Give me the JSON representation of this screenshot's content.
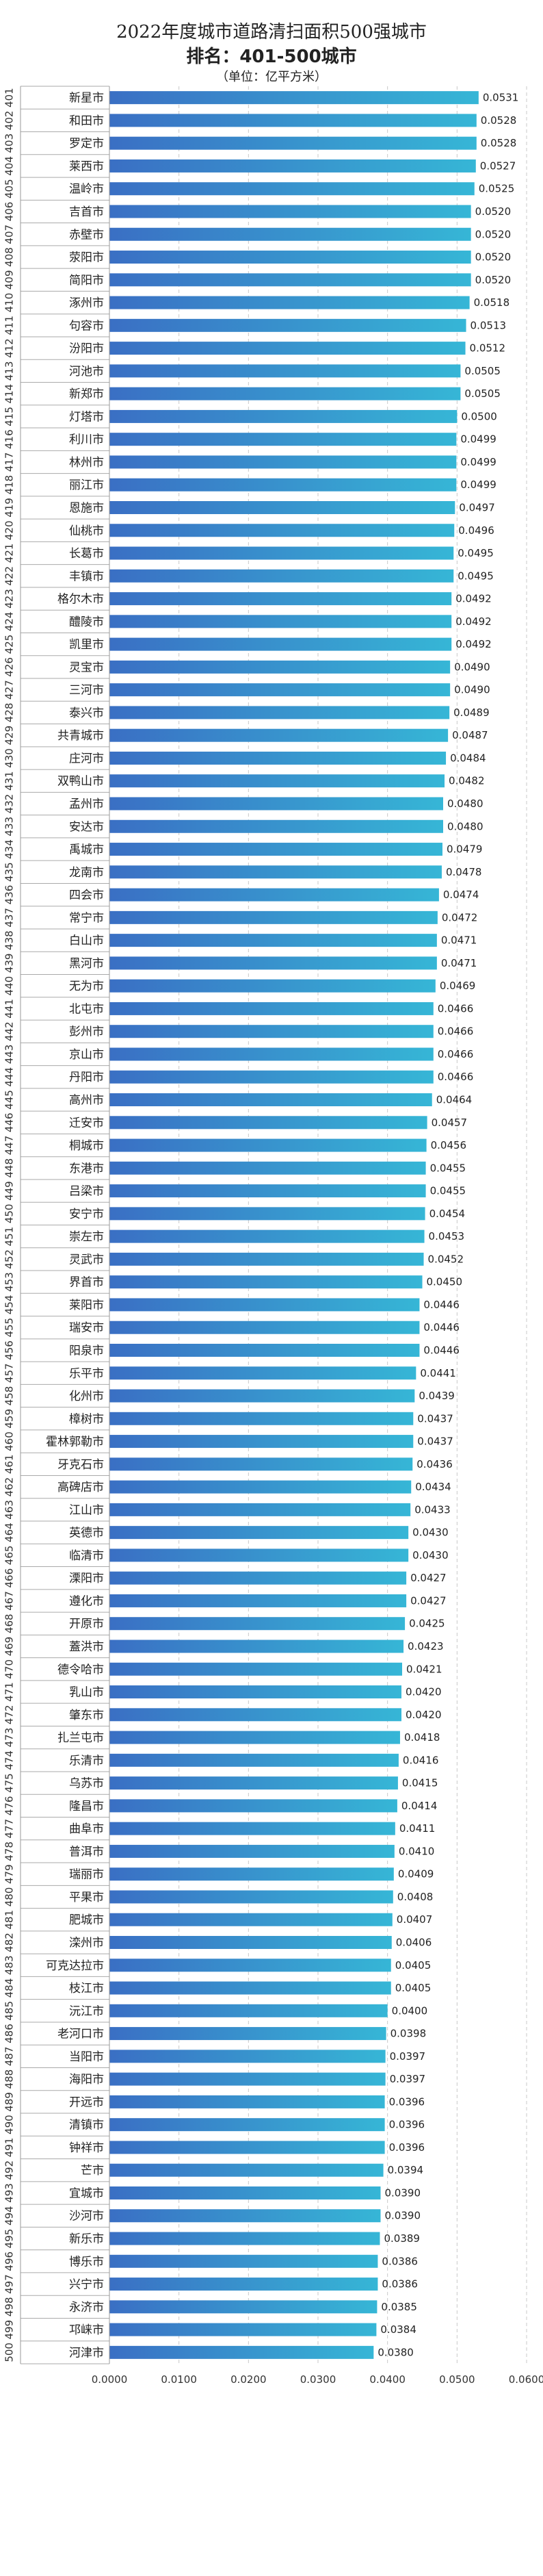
{
  "title": "2022年度城市道路清扫面积500强城市",
  "subtitle": "排名：401-500城市",
  "unit": "（单位：亿平方米）",
  "chart_data": {
    "type": "bar",
    "orientation": "horizontal",
    "title": "2022年度城市道路清扫面积500强城市",
    "subtitle": "排名：401-500城市",
    "unit": "（单位：亿平方米）",
    "xlim": [
      0,
      0.06
    ],
    "x_ticks": [
      "0.0000",
      "0.0100",
      "0.0200",
      "0.0300",
      "0.0400",
      "0.0500",
      "0.0600"
    ],
    "grid": "vertical dashed",
    "bar_color_start": "#3a6fc4",
    "bar_color_end": "#36b6d6",
    "ranks": [
      401,
      402,
      403,
      404,
      405,
      406,
      407,
      408,
      409,
      410,
      411,
      412,
      413,
      414,
      415,
      416,
      417,
      418,
      419,
      420,
      421,
      422,
      423,
      424,
      425,
      426,
      427,
      428,
      429,
      430,
      431,
      432,
      433,
      434,
      435,
      436,
      437,
      438,
      439,
      440,
      441,
      442,
      443,
      444,
      445,
      446,
      447,
      448,
      449,
      450,
      451,
      452,
      453,
      454,
      455,
      456,
      457,
      458,
      459,
      460,
      461,
      462,
      463,
      464,
      465,
      466,
      467,
      468,
      469,
      470,
      471,
      472,
      473,
      474,
      475,
      476,
      477,
      478,
      479,
      480,
      481,
      482,
      483,
      484,
      485,
      486,
      487,
      488,
      489,
      490,
      491,
      492,
      493,
      494,
      495,
      496,
      497,
      498,
      499,
      500
    ],
    "categories": [
      "新星市",
      "和田市",
      "罗定市",
      "莱西市",
      "温岭市",
      "吉首市",
      "赤壁市",
      "荥阳市",
      "简阳市",
      "涿州市",
      "句容市",
      "汾阳市",
      "河池市",
      "新郑市",
      "灯塔市",
      "利川市",
      "林州市",
      "丽江市",
      "恩施市",
      "仙桃市",
      "长葛市",
      "丰镇市",
      "格尔木市",
      "醴陵市",
      "凯里市",
      "灵宝市",
      "三河市",
      "泰兴市",
      "共青城市",
      "庄河市",
      "双鸭山市",
      "孟州市",
      "安达市",
      "禹城市",
      "龙南市",
      "四会市",
      "常宁市",
      "白山市",
      "黑河市",
      "无为市",
      "北屯市",
      "彭州市",
      "京山市",
      "丹阳市",
      "高州市",
      "迁安市",
      "桐城市",
      "东港市",
      "吕梁市",
      "安宁市",
      "崇左市",
      "灵武市",
      "界首市",
      "莱阳市",
      "瑞安市",
      "阳泉市",
      "乐平市",
      "化州市",
      "樟树市",
      "霍林郭勒市",
      "牙克石市",
      "高碑店市",
      "江山市",
      "英德市",
      "临清市",
      "溧阳市",
      "遵化市",
      "开原市",
      "蓋洪市",
      "德令哈市",
      "乳山市",
      "肇东市",
      "扎兰屯市",
      "乐清市",
      "乌苏市",
      "隆昌市",
      "曲阜市",
      "普洱市",
      "瑞丽市",
      "平果市",
      "肥城市",
      "滦州市",
      "可克达拉市",
      "枝江市",
      "沅江市",
      "老河口市",
      "当阳市",
      "海阳市",
      "开远市",
      "清镇市",
      "钟祥市",
      "芒市",
      "宜城市",
      "沙河市",
      "新乐市",
      "博乐市",
      "兴宁市",
      "永济市",
      "邛崃市",
      "河津市"
    ],
    "values": [
      0.0531,
      0.0528,
      0.0528,
      0.0527,
      0.0525,
      0.052,
      0.052,
      0.052,
      0.052,
      0.0518,
      0.0513,
      0.0512,
      0.0505,
      0.0505,
      0.05,
      0.0499,
      0.0499,
      0.0499,
      0.0497,
      0.0496,
      0.0495,
      0.0495,
      0.0492,
      0.0492,
      0.0492,
      0.049,
      0.049,
      0.0489,
      0.0487,
      0.0484,
      0.0482,
      0.048,
      0.048,
      0.0479,
      0.0478,
      0.0474,
      0.0472,
      0.0471,
      0.0471,
      0.0469,
      0.0466,
      0.0466,
      0.0466,
      0.0466,
      0.0464,
      0.0457,
      0.0456,
      0.0455,
      0.0455,
      0.0454,
      0.0453,
      0.0452,
      0.045,
      0.0446,
      0.0446,
      0.0446,
      0.0441,
      0.0439,
      0.0437,
      0.0437,
      0.0436,
      0.0434,
      0.0433,
      0.043,
      0.043,
      0.0427,
      0.0427,
      0.0425,
      0.0423,
      0.0421,
      0.042,
      0.042,
      0.0418,
      0.0416,
      0.0415,
      0.0414,
      0.0411,
      0.041,
      0.0409,
      0.0408,
      0.0407,
      0.0406,
      0.0405,
      0.0405,
      0.04,
      0.0398,
      0.0397,
      0.0397,
      0.0396,
      0.0396,
      0.0396,
      0.0394,
      0.039,
      0.039,
      0.0389,
      0.0386,
      0.0386,
      0.0385,
      0.0384,
      0.038
    ]
  }
}
